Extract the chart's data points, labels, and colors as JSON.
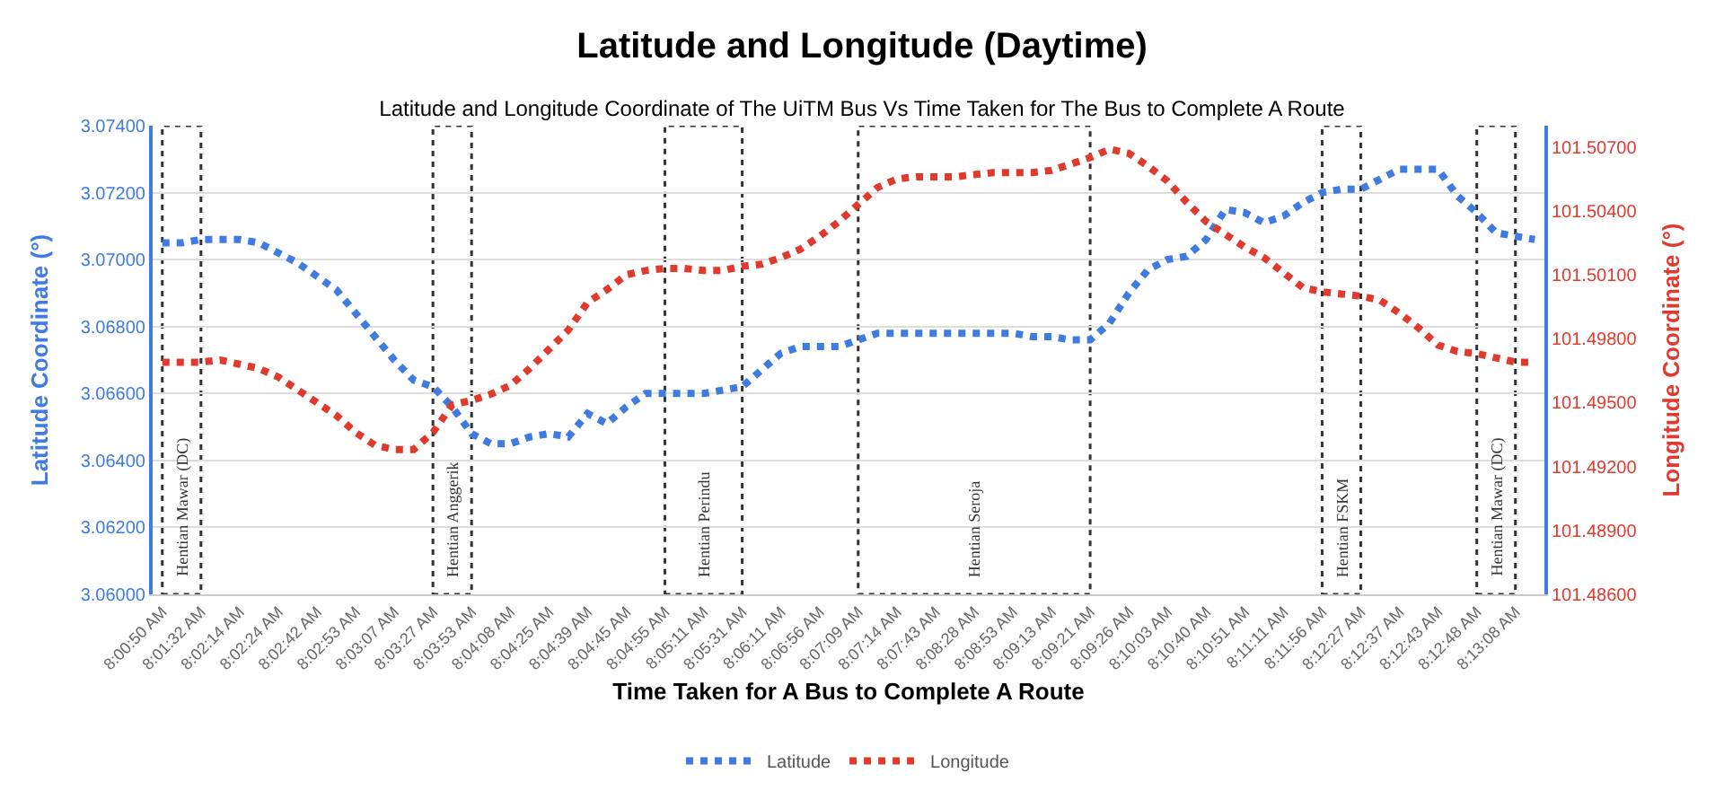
{
  "chart_data": {
    "type": "line",
    "title": "Latitude and Longitude (Daytime)",
    "subtitle": "Latitude and Longitude Coordinate of The UiTM Bus Vs Time Taken for The Bus to Complete A Route",
    "xlabel": "Time Taken for A Bus to Complete A Route",
    "ylabel": "Latitude Coordinate (°)",
    "y2label": "Longitude Coordinate (°)",
    "categories": [
      "8:00:50 AM",
      null,
      "8:01:32 AM",
      null,
      "8:02:14 AM",
      null,
      "8:02:24 AM",
      null,
      "8:02:42 AM",
      null,
      "8:02:53 AM",
      null,
      "8:03:07 AM",
      null,
      "8:03:27 AM",
      null,
      "8:03:53 AM",
      null,
      "8:04:08 AM",
      null,
      "8:04:25 AM",
      null,
      "8:04:39 AM",
      null,
      "8:04:45 AM",
      null,
      "8:04:55 AM",
      null,
      "8:05:11 AM",
      null,
      "8:05:31 AM",
      null,
      "8:06:11 AM",
      null,
      "8:06:56 AM",
      null,
      "8:07:09 AM",
      null,
      "8:07:14 AM",
      null,
      "8:07:43 AM",
      null,
      "8:08:28 AM",
      null,
      "8:08:53 AM",
      null,
      "8:09:13 AM",
      null,
      "8:09:21 AM",
      null,
      "8:09:26 AM",
      null,
      "8:10:03 AM",
      null,
      "8:10:40 AM",
      null,
      "8:10:51 AM",
      null,
      "8:11:11 AM",
      null,
      "8:11:56 AM",
      null,
      "8:12:27 AM",
      null,
      "8:12:37 AM",
      null,
      "8:12:43 AM",
      null,
      "8:12:48 AM",
      null,
      "8:13:08 AM",
      null
    ],
    "series": [
      {
        "name": "Latitude",
        "color": "#3f7be0",
        "values": [
          3.0705,
          3.0705,
          3.0706,
          3.0706,
          3.0706,
          3.0705,
          3.0702,
          3.0699,
          3.0695,
          3.0691,
          3.0684,
          3.0677,
          3.067,
          3.0664,
          3.0662,
          3.0656,
          3.0648,
          3.0645,
          3.0645,
          3.0647,
          3.0648,
          3.0647,
          3.0654,
          3.0651,
          3.0656,
          3.066,
          3.066,
          3.066,
          3.066,
          3.0661,
          3.0662,
          3.0667,
          3.0672,
          3.0674,
          3.0674,
          3.0674,
          3.0676,
          3.0678,
          3.0678,
          3.0678,
          3.0678,
          3.0678,
          3.0678,
          3.0678,
          3.0678,
          3.0677,
          3.0677,
          3.0676,
          3.0676,
          3.0681,
          3.069,
          3.0697,
          3.07,
          3.0701,
          3.0706,
          3.0715,
          3.0714,
          3.0711,
          3.0713,
          3.0717,
          3.072,
          3.0721,
          3.0721,
          3.0724,
          3.0727,
          3.0727,
          3.0727,
          3.0719,
          3.0714,
          3.0708,
          3.0707,
          3.0706
        ]
      },
      {
        "name": "Longitude",
        "color": "#e03a2e",
        "axis": "y2",
        "values": [
          101.4969,
          101.4969,
          101.4969,
          101.497,
          101.4968,
          101.4966,
          101.4962,
          101.4956,
          101.495,
          101.4944,
          101.4936,
          101.493,
          101.4928,
          101.4928,
          101.4936,
          101.4949,
          101.4951,
          101.4954,
          101.4958,
          101.4966,
          101.4975,
          101.4984,
          101.4997,
          101.5003,
          101.501,
          101.5012,
          101.5013,
          101.5013,
          101.5012,
          101.5012,
          101.5014,
          101.5015,
          101.5018,
          101.5022,
          101.5028,
          101.5035,
          101.5043,
          101.5051,
          101.5055,
          101.5056,
          101.5056,
          101.5056,
          101.5057,
          101.5058,
          101.5058,
          101.5058,
          101.5059,
          101.5062,
          101.5065,
          101.5069,
          101.5067,
          101.5061,
          101.5054,
          101.5044,
          101.5035,
          101.5029,
          101.5023,
          101.5018,
          101.5011,
          101.5004,
          101.5002,
          101.5001,
          101.5,
          101.4998,
          101.4992,
          101.4985,
          101.4977,
          101.4974,
          101.4973,
          101.4971,
          101.4969,
          101.4969
        ]
      }
    ],
    "ylim": [
      3.06,
      3.074
    ],
    "yticks": [
      {
        "value": 3.06,
        "label": "3.06000"
      },
      {
        "value": 3.062,
        "label": "3.06200"
      },
      {
        "value": 3.064,
        "label": "3.06400"
      },
      {
        "value": 3.066,
        "label": "3.06600"
      },
      {
        "value": 3.068,
        "label": "3.06800"
      },
      {
        "value": 3.07,
        "label": "3.07000"
      },
      {
        "value": 3.072,
        "label": "3.07200"
      },
      {
        "value": 3.074,
        "label": "3.07400"
      }
    ],
    "y2lim": [
      101.486,
      101.508
    ],
    "y2ticks": [
      {
        "value": 101.486,
        "label": "101.48600"
      },
      {
        "value": 101.489,
        "label": "101.48900"
      },
      {
        "value": 101.492,
        "label": "101.49200"
      },
      {
        "value": 101.495,
        "label": "101.49500"
      },
      {
        "value": 101.498,
        "label": "101.49800"
      },
      {
        "value": 101.501,
        "label": "101.50100"
      },
      {
        "value": 101.504,
        "label": "101.50400"
      },
      {
        "value": 101.507,
        "label": "101.50700"
      }
    ],
    "bands": [
      {
        "axis": "x",
        "from": "8:00:50 AM",
        "to": "8:01:32 AM",
        "label": "Hentian Mawar (DC)"
      },
      {
        "axis": "x",
        "from": "8:03:27 AM",
        "to": "8:03:53 AM",
        "label": "Hentian Anggerik"
      },
      {
        "axis": "x",
        "from": "8:04:55 AM",
        "to": "8:05:31 AM",
        "label": "Hentian Perindu"
      },
      {
        "axis": "x",
        "from": "8:07:09 AM",
        "to": "8:09:21 AM",
        "label": "Hentian Seroja"
      },
      {
        "axis": "x",
        "from": "8:11:56 AM",
        "to": "8:12:27 AM",
        "label": "Hentian FSKM"
      },
      {
        "axis": "x",
        "from": "8:12:48 AM",
        "to": "8:13:08 AM",
        "label": "Hentian Mawar (DC)"
      }
    ],
    "grid": "y",
    "legend": "bottom",
    "marker": "none",
    "line_style": "dotted"
  }
}
